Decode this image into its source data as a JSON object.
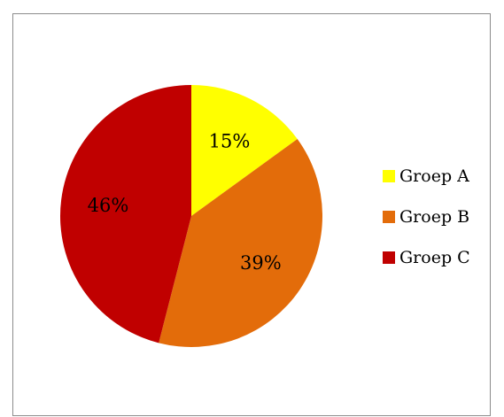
{
  "chart_data": {
    "type": "pie",
    "categories": [
      "Groep A",
      "Groep B",
      "Groep C"
    ],
    "values": [
      15,
      39,
      46
    ],
    "value_labels": [
      "15%",
      "39%",
      "46%"
    ],
    "colors": [
      "#ffff00",
      "#e36c0a",
      "#c00000"
    ],
    "start_angle_deg": 0,
    "direction": "clockwise",
    "legend_position": "right"
  }
}
